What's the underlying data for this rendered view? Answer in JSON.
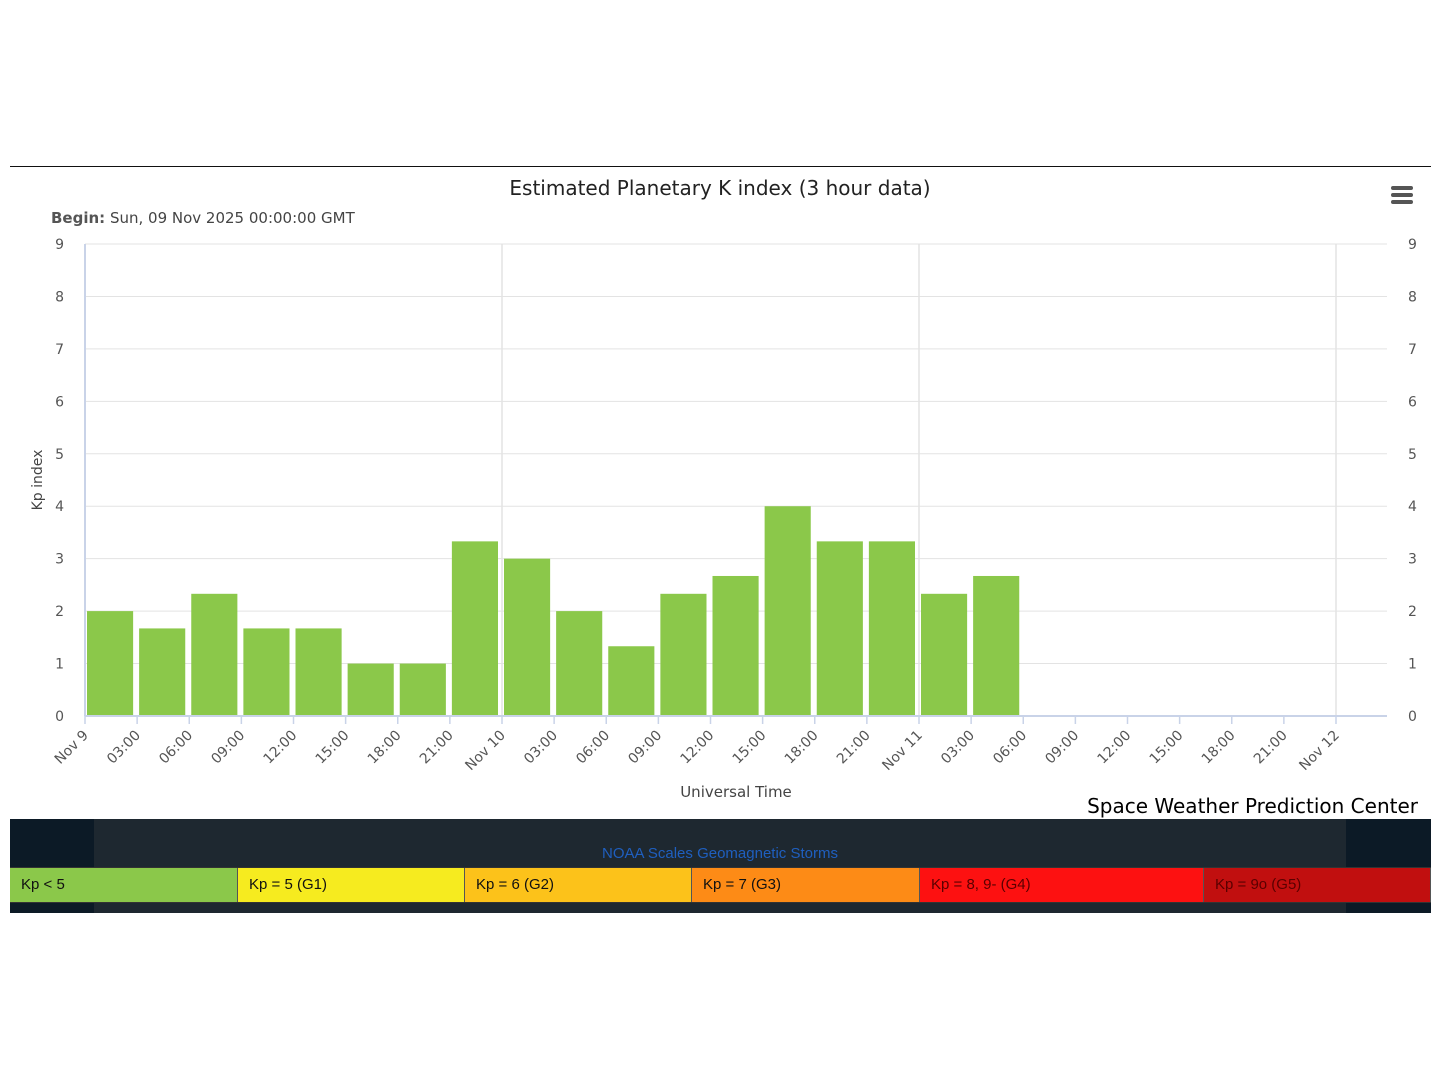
{
  "page": {
    "credit": "Space Weather Prediction Center",
    "scales_title": "NOAA Scales Geomagnetic Storms",
    "begin_label": "Begin:",
    "begin_value": "Sun, 09 Nov 2025 00:00:00 GMT"
  },
  "legend": [
    {
      "label": "Kp < 5",
      "color": "#8bc84a",
      "text_color": "#111111"
    },
    {
      "label": "Kp = 5 (G1)",
      "color": "#f6eb1f",
      "text_color": "#111111"
    },
    {
      "label": "Kp = 6 (G2)",
      "color": "#fcc21a",
      "text_color": "#111111"
    },
    {
      "label": "Kp = 7 (G3)",
      "color": "#fd8b16",
      "text_color": "#111111"
    },
    {
      "label": "Kp = 8, 9- (G4)",
      "color": "#fd1111",
      "text_color": "#5a0000"
    },
    {
      "label": "Kp = 9o (G5)",
      "color": "#c10f0f",
      "text_color": "#5a0000"
    }
  ],
  "chart_data": {
    "type": "bar",
    "title": "Estimated Planetary K index (3 hour data)",
    "xlabel": "Universal Time",
    "ylabel": "Kp index",
    "ylim": [
      0,
      9
    ],
    "yticks": [
      "0",
      "1",
      "2",
      "3",
      "4",
      "5",
      "6",
      "7",
      "8",
      "9"
    ],
    "xticks": [
      "Nov 9",
      "03:00",
      "06:00",
      "09:00",
      "12:00",
      "15:00",
      "18:00",
      "21:00",
      "Nov 10",
      "03:00",
      "06:00",
      "09:00",
      "12:00",
      "15:00",
      "18:00",
      "21:00",
      "Nov 11",
      "03:00",
      "06:00",
      "09:00",
      "12:00",
      "15:00",
      "18:00",
      "21:00",
      "Nov 12"
    ],
    "categories": [
      "Nov 9 00:00",
      "Nov 9 03:00",
      "Nov 9 06:00",
      "Nov 9 09:00",
      "Nov 9 12:00",
      "Nov 9 15:00",
      "Nov 9 18:00",
      "Nov 9 21:00",
      "Nov 10 00:00",
      "Nov 10 03:00",
      "Nov 10 06:00",
      "Nov 10 09:00",
      "Nov 10 12:00",
      "Nov 10 15:00",
      "Nov 10 18:00",
      "Nov 10 21:00",
      "Nov 11 00:00",
      "Nov 11 03:00"
    ],
    "values": [
      2.0,
      1.67,
      2.33,
      1.67,
      1.67,
      1.0,
      1.0,
      3.33,
      3.0,
      2.0,
      1.33,
      2.33,
      2.67,
      4.0,
      3.33,
      3.33,
      2.33,
      2.67
    ],
    "bar_color": "#8bc84a",
    "grid": true
  }
}
